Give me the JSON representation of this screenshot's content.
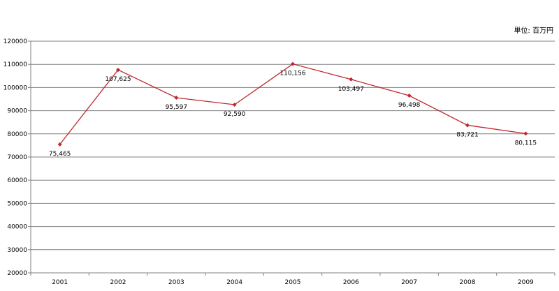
{
  "chart_data": {
    "type": "line",
    "unit_label": "単位: 百万円",
    "categories": [
      "2001",
      "2002",
      "2003",
      "2004",
      "2005",
      "2006",
      "2007",
      "2008",
      "2009"
    ],
    "series": [
      {
        "values": [
          75465,
          107625,
          95597,
          92590,
          110156,
          103497,
          96498,
          83721,
          80115
        ],
        "data_labels": [
          "75,465",
          "107,625",
          "95,597",
          "92,590",
          "110,156",
          "103,497",
          "96,498",
          "83,721",
          "80,115"
        ],
        "color": "#c0272d"
      }
    ],
    "ylim": [
      20000,
      120000
    ],
    "y_ticks": [
      20000,
      30000,
      40000,
      50000,
      60000,
      70000,
      80000,
      90000,
      100000,
      110000,
      120000
    ],
    "y_tick_labels": [
      "20000",
      "30000",
      "40000",
      "50000",
      "60000",
      "70000",
      "80000",
      "90000",
      "100000",
      "110000",
      "120000"
    ],
    "grid": true,
    "grid_color": "#808080",
    "axis_color": "#808080",
    "legend": "none"
  }
}
